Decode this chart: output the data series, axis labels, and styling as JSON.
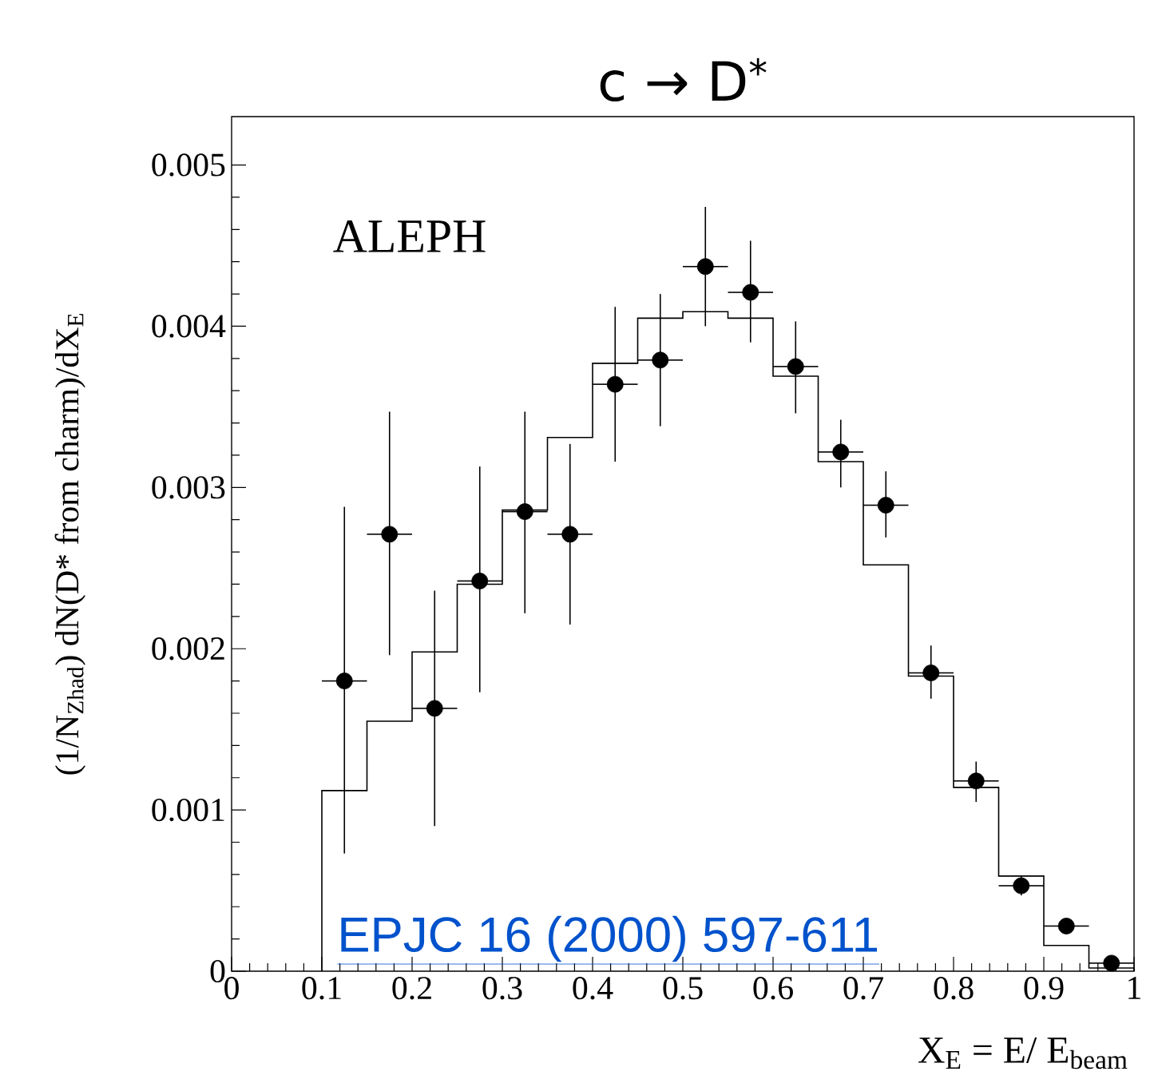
{
  "chart_data": {
    "type": "histogram",
    "title": "c → D$^{*}$",
    "xlabel": "X$_{E}$ = E/ E$_{beam}$",
    "ylabel": "(1/N$_{Zhad}$) dN(D* from charm)/dX$_{E}$",
    "annotations": [
      "ALEPH",
      "EPJC 16 (2000) 597-611"
    ],
    "xlim": [
      0,
      1
    ],
    "ylim": [
      0,
      0.0053
    ],
    "xticks": [
      0,
      0.1,
      0.2,
      0.3,
      0.4,
      0.5,
      0.6,
      0.7,
      0.8,
      0.9,
      1
    ],
    "yticks": [
      0,
      0.001,
      0.002,
      0.003,
      0.004,
      0.005
    ],
    "grid": false,
    "marker": "circle",
    "series": [
      {
        "color": "#000000",
        "line_style": "solid",
        "bins": [
          0.1,
          0.15,
          0.2,
          0.25,
          0.3,
          0.35,
          0.4,
          0.45,
          0.5,
          0.55,
          0.6,
          0.65,
          0.7,
          0.75,
          0.8,
          0.85,
          0.9,
          0.95,
          1.0
        ],
        "values": [
          0.00112,
          0.00155,
          0.00198,
          0.0024,
          0.00286,
          0.00331,
          0.00377,
          0.00405,
          0.00409,
          0.00405,
          0.00369,
          0.00316,
          0.00252,
          0.00183,
          0.00114,
          0.00059,
          0.00016,
          2e-05
        ]
      },
      {
        "type": "scatter",
        "color": "#000000",
        "x": [
          0.125,
          0.175,
          0.225,
          0.275,
          0.325,
          0.375,
          0.425,
          0.475,
          0.525,
          0.575,
          0.625,
          0.675,
          0.725,
          0.775,
          0.825,
          0.875,
          0.925,
          0.975
        ],
        "values": [
          0.0018,
          0.00271,
          0.00163,
          0.00242,
          0.00285,
          0.00271,
          0.00364,
          0.00379,
          0.00437,
          0.00421,
          0.00375,
          0.00322,
          0.00289,
          0.00185,
          0.00118,
          0.00053,
          0.00028,
          5e-05
        ],
        "errors": [
          [
            0.00073,
            0.00288
          ],
          [
            0.00196,
            0.00347
          ],
          [
            0.0009,
            0.00236
          ],
          [
            0.00173,
            0.00313
          ],
          [
            0.00222,
            0.00347
          ],
          [
            0.00215,
            0.00327
          ],
          [
            0.00316,
            0.00412
          ],
          [
            0.00338,
            0.0042
          ],
          [
            0.004,
            0.00474
          ],
          [
            0.0039,
            0.00453
          ],
          [
            0.00346,
            0.00403
          ],
          [
            0.003,
            0.00342
          ],
          [
            0.00269,
            0.0031
          ],
          [
            0.00169,
            0.00202
          ],
          [
            0.00105,
            0.0013
          ],
          [
            0.00047,
            0.00059
          ],
          [
            0.00024,
            0.00032
          ],
          null
        ],
        "xerrors": [
          0.025,
          0.025,
          0.025,
          0.025,
          0.025,
          0.025,
          0.025,
          0.025,
          0.025,
          0.025,
          0.025,
          0.025,
          0.025,
          0.025,
          0.025,
          0.025,
          0.025,
          0.025
        ]
      }
    ]
  }
}
